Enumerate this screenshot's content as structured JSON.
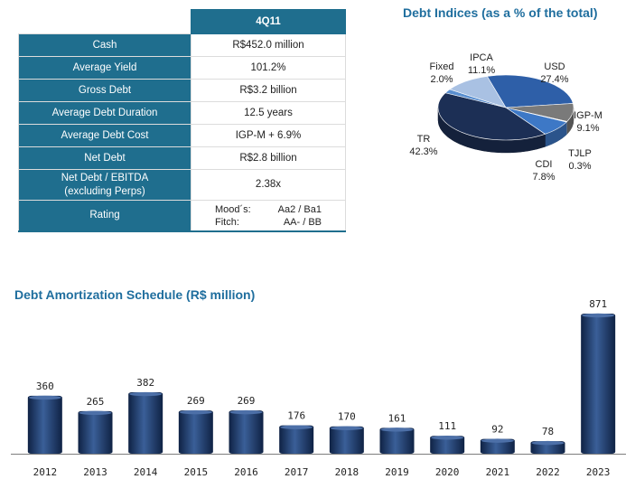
{
  "summary": {
    "column_header": "4Q11",
    "rows": [
      {
        "label": "Cash",
        "value": "R$452.0 million"
      },
      {
        "label": "Average Yield",
        "value": "101.2%"
      },
      {
        "label": "Gross Debt",
        "value": "R$3.2 billion"
      },
      {
        "label": "Average Debt Duration",
        "value": "12.5 years"
      },
      {
        "label": "Average Debt Cost",
        "value": "IGP-M + 6.9%"
      },
      {
        "label": "Net Debt",
        "value": "R$2.8 billion"
      },
      {
        "label_line1": "Net Debt / EBITDA",
        "label_line2": "(excluding Perps)",
        "value": "2.38x"
      }
    ],
    "rating": {
      "label": "Rating",
      "moodys_label": "Mood´s:",
      "moodys_value": "Aa2 / Ba1",
      "fitch_label": "Fitch:",
      "fitch_value": "AA- / BB"
    }
  },
  "chart_data": [
    {
      "type": "pie",
      "title": "Debt Indices (as a % of the total)",
      "slices": [
        {
          "name": "USD",
          "value": 27.4,
          "label": "27.4%",
          "color": "#2e5fa8"
        },
        {
          "name": "IGP-M",
          "value": 9.1,
          "label": "9.1%",
          "color": "#7a7a7a"
        },
        {
          "name": "TJLP",
          "value": 0.3,
          "label": "0.3%",
          "color": "#c8d6ea"
        },
        {
          "name": "CDI",
          "value": 7.8,
          "label": "7.8%",
          "color": "#3d78c6"
        },
        {
          "name": "TR",
          "value": 42.3,
          "label": "42.3%",
          "color": "#1c2f55"
        },
        {
          "name": "Fixed",
          "value": 2.0,
          "label": "2.0%",
          "color": "#5a8fd0"
        },
        {
          "name": "IPCA",
          "value": 11.1,
          "label": "11.1%",
          "color": "#a9c1e3"
        }
      ]
    },
    {
      "type": "bar",
      "title": "Debt Amortization Schedule (R$ million)",
      "categories": [
        "2012",
        "2013",
        "2014",
        "2015",
        "2016",
        "2017",
        "2018",
        "2019",
        "2020",
        "2021",
        "2022",
        "2023"
      ],
      "values": [
        360,
        265,
        382,
        269,
        269,
        176,
        170,
        161,
        111,
        92,
        78,
        871
      ],
      "ylim": [
        0,
        871
      ],
      "color": "#1c3563"
    }
  ]
}
